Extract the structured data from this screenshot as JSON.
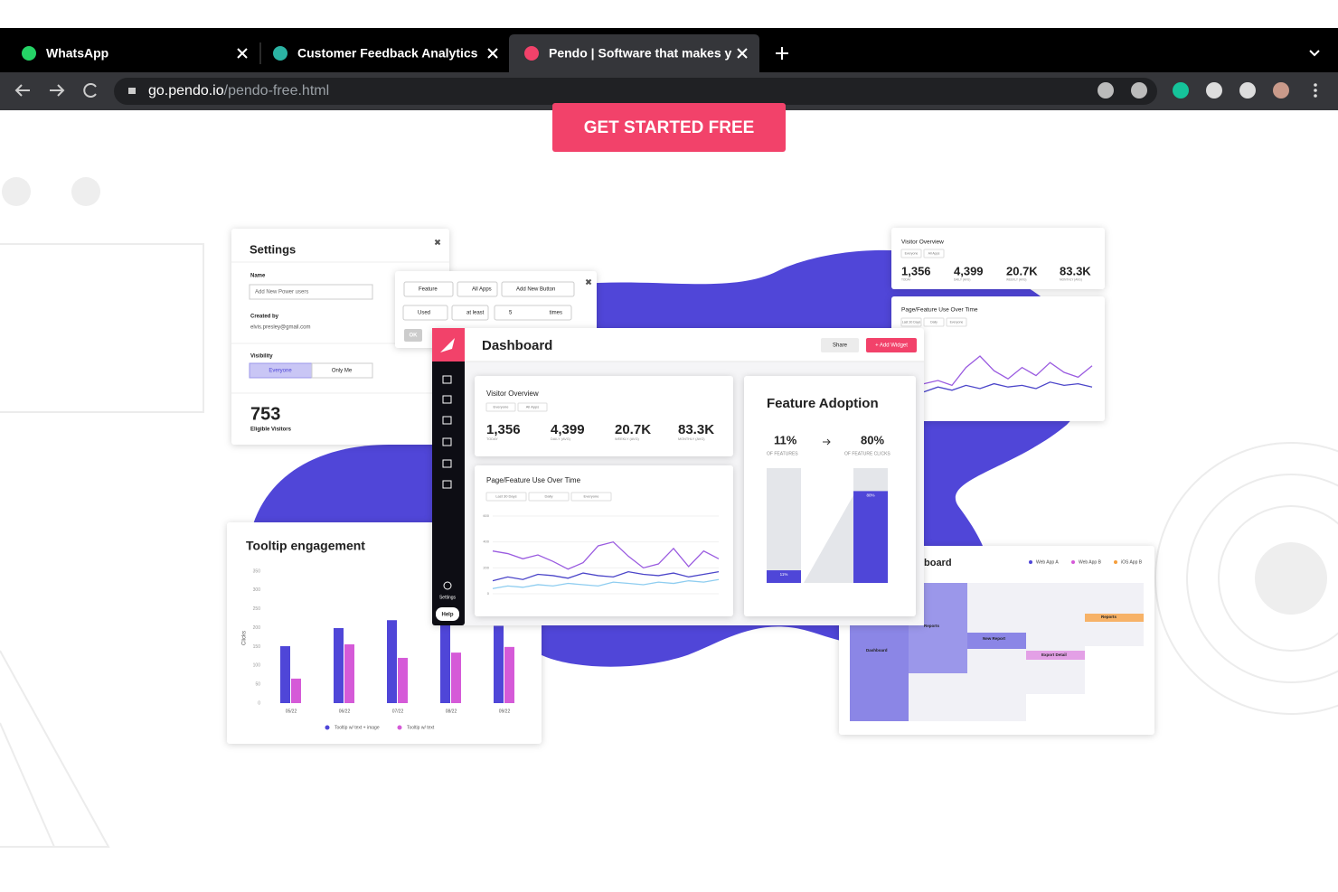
{
  "browser": {
    "tabs": [
      {
        "title": "WhatsApp"
      },
      {
        "title": "Customer Feedback Analytics"
      },
      {
        "title": "Pendo | Software that makes y"
      }
    ],
    "url": {
      "host": "go.pendo.io",
      "path": "/pendo-free.html"
    }
  },
  "cta": "GET STARTED FREE",
  "settings": {
    "title": "Settings",
    "name_label": "Name",
    "name_value": "Add New Power users",
    "created_label": "Created by",
    "created_value": "elvis.presley@gmail.com",
    "visibility_label": "Visibility",
    "options": [
      "Everyone",
      "Only Me"
    ],
    "count": "753",
    "count_label": "Eligible Visitors"
  },
  "filter": {
    "row1": [
      "Feature",
      "All Apps",
      "Add New Button"
    ],
    "row2": [
      "Used",
      "at least",
      "5"
    ],
    "times": "times",
    "button": "OK"
  },
  "dashboard": {
    "title": "Dashboard",
    "share": "Share",
    "add": "+ Add Widget",
    "sidebar": {
      "settings": "Settings",
      "help": "Help"
    },
    "visitor_overview": {
      "title": "Visitor Overview",
      "filters": [
        "Everyone",
        "All Apps"
      ],
      "stats": [
        {
          "value": "1,356",
          "label": "TODAY"
        },
        {
          "value": "4,399",
          "label": "DAILY (AVG)"
        },
        {
          "value": "20.7K",
          "label": "WEEKLY (AVG)"
        },
        {
          "value": "83.3K",
          "label": "MONTHLY (AVG)"
        }
      ]
    },
    "usage": {
      "title": "Page/Feature Use Over Time",
      "filters": [
        "Last 30 Days",
        "Daily",
        "Everyone"
      ],
      "ylim": [
        0,
        600
      ],
      "yticks": [
        0,
        200,
        400,
        600
      ],
      "series": [
        {
          "color": "#9a5be0",
          "values": [
            330,
            310,
            270,
            300,
            250,
            190,
            240,
            370,
            400,
            290,
            200,
            230,
            350,
            210,
            330,
            270
          ]
        },
        {
          "color": "#4b45c9",
          "values": [
            100,
            130,
            110,
            150,
            140,
            120,
            160,
            140,
            130,
            170,
            150,
            140,
            160,
            130,
            150,
            170
          ]
        },
        {
          "color": "#8ecdf0",
          "values": [
            40,
            60,
            50,
            70,
            60,
            80,
            70,
            60,
            90,
            80,
            70,
            90,
            80,
            100,
            90,
            110
          ]
        }
      ]
    },
    "adoption": {
      "title": "Feature Adoption",
      "items": [
        {
          "value": 11,
          "label": "11%",
          "caption": "OF FEATURES"
        },
        {
          "value": 80,
          "label": "80%",
          "caption": "OF FEATURE CLICKS"
        }
      ]
    }
  },
  "right_overview": {
    "title": "Visitor Overview",
    "filters": [
      "Everyone",
      "All Apps"
    ],
    "stats": [
      {
        "value": "1,356",
        "label": "TODAY"
      },
      {
        "value": "4,399",
        "label": "DAILY (AVG)"
      },
      {
        "value": "20.7K",
        "label": "WEEKLY (AVG)"
      },
      {
        "value": "83.3K",
        "label": "MONTHLY (AVG)"
      }
    ]
  },
  "right_usage": {
    "title": "Page/Feature Use Over Time",
    "filters": [
      "Last 30 Days",
      "Daily",
      "Everyone"
    ],
    "ylim": [
      0,
      350
    ],
    "series": [
      {
        "color": "#9a5be0",
        "values": [
          130,
          150,
          120,
          230,
          300,
          210,
          160,
          230,
          180,
          260,
          200,
          170,
          240
        ]
      },
      {
        "color": "#4b45c9",
        "values": [
          80,
          110,
          90,
          120,
          100,
          130,
          110,
          120,
          100,
          140,
          120,
          130,
          110
        ]
      }
    ]
  },
  "tooltip_chart": {
    "title": "Tooltip engagement",
    "ylabel": "Clicks",
    "categories": [
      "05/22",
      "06/22",
      "07/22",
      "08/22",
      "09/22"
    ],
    "ylim": [
      0,
      350
    ],
    "yticks": [
      0,
      50,
      100,
      150,
      200,
      250,
      300,
      350
    ],
    "series": [
      {
        "name": "Tooltip w/ text + image",
        "color": "#4f46d8",
        "values": [
          151,
          199,
          220,
          210,
          205
        ]
      },
      {
        "name": "Tooltip w/ text",
        "color": "#d55ad8",
        "values": [
          65,
          156,
          120,
          134,
          149
        ]
      }
    ]
  },
  "journey": {
    "title": "board",
    "legend": [
      {
        "name": "Web App A",
        "color": "#4f46d8"
      },
      {
        "name": "Web App B",
        "color": "#d55ad8"
      },
      {
        "name": "iOS App B",
        "color": "#f59e3b"
      }
    ],
    "nodes": [
      "Dashboard",
      "Reports",
      "New Report",
      "Reports",
      "Export Detail"
    ]
  }
}
